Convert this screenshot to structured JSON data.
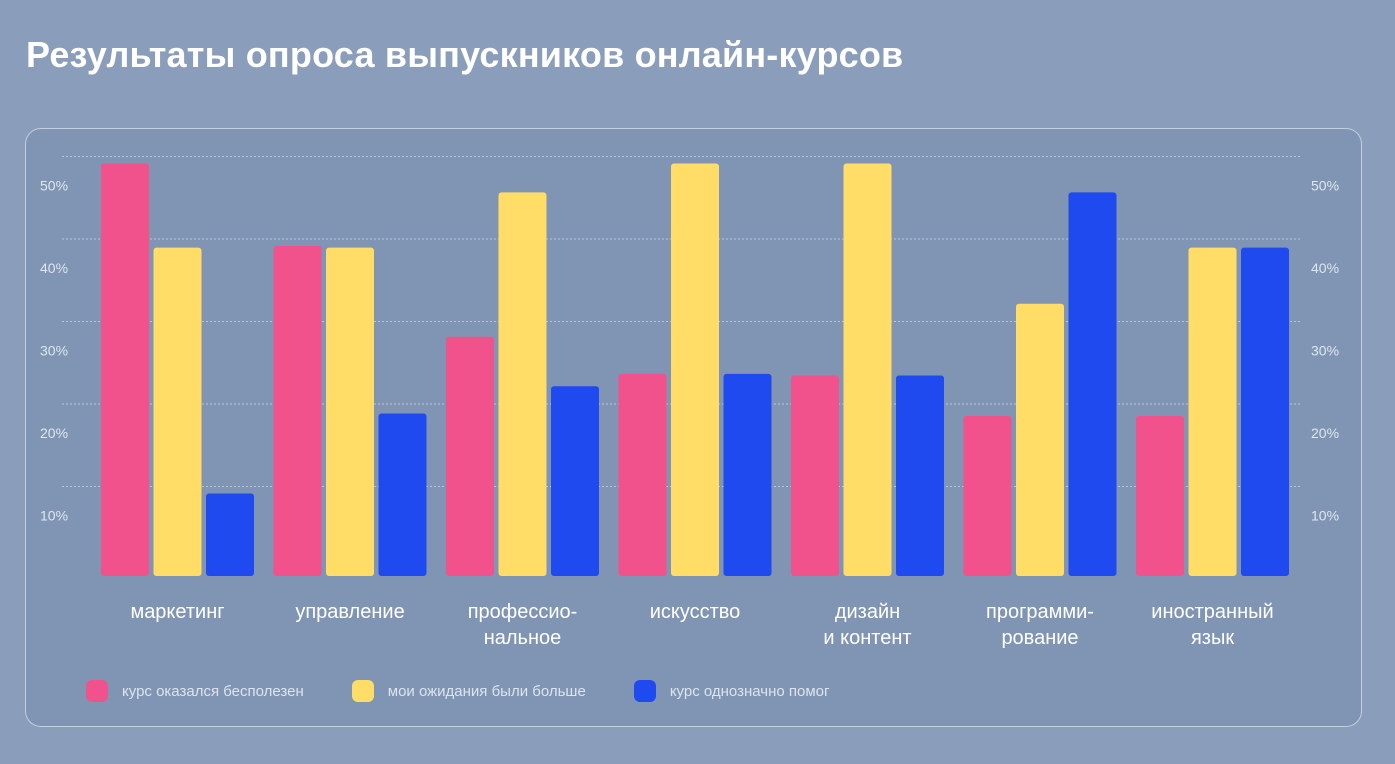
{
  "page": {
    "title": "Результаты опроса выпускников онлайн-курсов"
  },
  "chart_data": {
    "type": "bar",
    "categories": [
      [
        "маркетинг"
      ],
      [
        "управление"
      ],
      [
        "профессио-",
        "нальное"
      ],
      [
        "искусство"
      ],
      [
        "дизайн",
        "и контент"
      ],
      [
        "программи-",
        "рование"
      ],
      [
        "иностранный",
        "язык"
      ]
    ],
    "series": [
      {
        "name": "курс оказался бесполезен",
        "color": "#f2528c",
        "values": [
          50,
          40,
          29,
          24.5,
          24.3,
          19.4,
          19.4
        ]
      },
      {
        "name": "мои ожидания были больше",
        "color": "#ffdd66",
        "values": [
          39.8,
          39.8,
          46.5,
          50,
          50,
          33,
          39.8
        ]
      },
      {
        "name": "курс однозначно помог",
        "color": "#1e4af0",
        "values": [
          10,
          19.7,
          23,
          24.5,
          24.3,
          46.5,
          39.8
        ]
      }
    ],
    "yticks": [
      "10%",
      "20%",
      "30%",
      "40%",
      "50%"
    ],
    "ylim": [
      0,
      50
    ],
    "grid": true,
    "legend": "bottom-left"
  }
}
